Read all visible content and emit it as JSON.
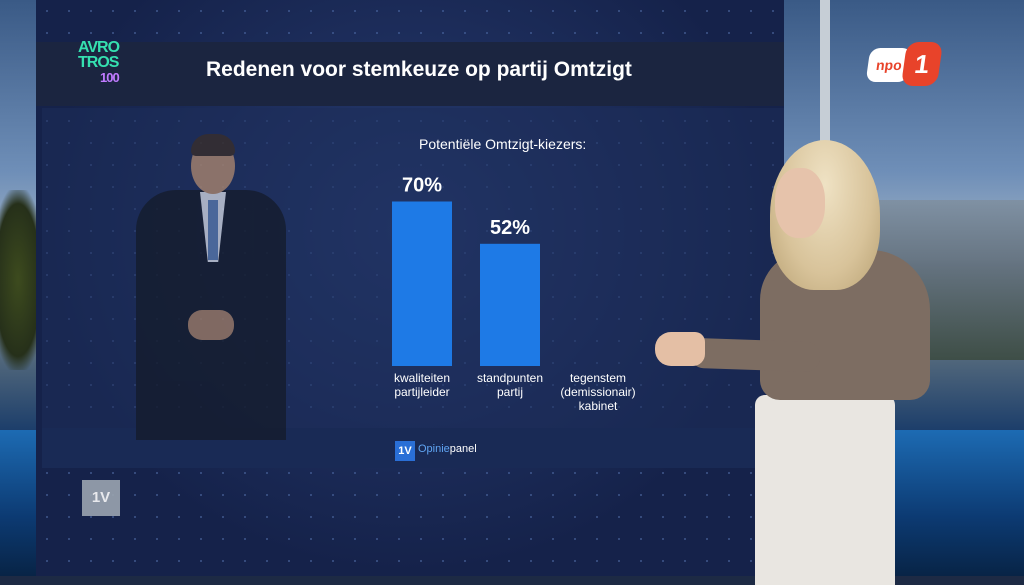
{
  "broadcaster_logo": {
    "line1": "AVRO",
    "line2": "TROS",
    "number": "100"
  },
  "channel_logo": {
    "word": "npo",
    "number": "1"
  },
  "program_bug": "1V",
  "footer": {
    "badge": "1V",
    "brand_part1": "Opinie",
    "brand_part2": "panel"
  },
  "colors": {
    "bar": "#1e7ae6",
    "screen_bg": "#15224a",
    "title_band": "#1b2540",
    "accent_avro": "#35e0b0"
  },
  "chart_data": {
    "type": "bar",
    "title": "Redenen voor stemkeuze op partij Omtzigt",
    "subtitle": "Potentiële Omtzigt-kiezers:",
    "categories": [
      [
        "kwaliteiten",
        "partijleider"
      ],
      [
        "standpunten",
        "partij"
      ],
      [
        "tegenstem",
        "(demissionair)",
        "kabinet"
      ]
    ],
    "values": [
      70,
      52,
      null
    ],
    "value_labels": [
      "70%",
      "52%",
      ""
    ],
    "unit": "%",
    "ylim": [
      0,
      100
    ],
    "grid": false
  }
}
